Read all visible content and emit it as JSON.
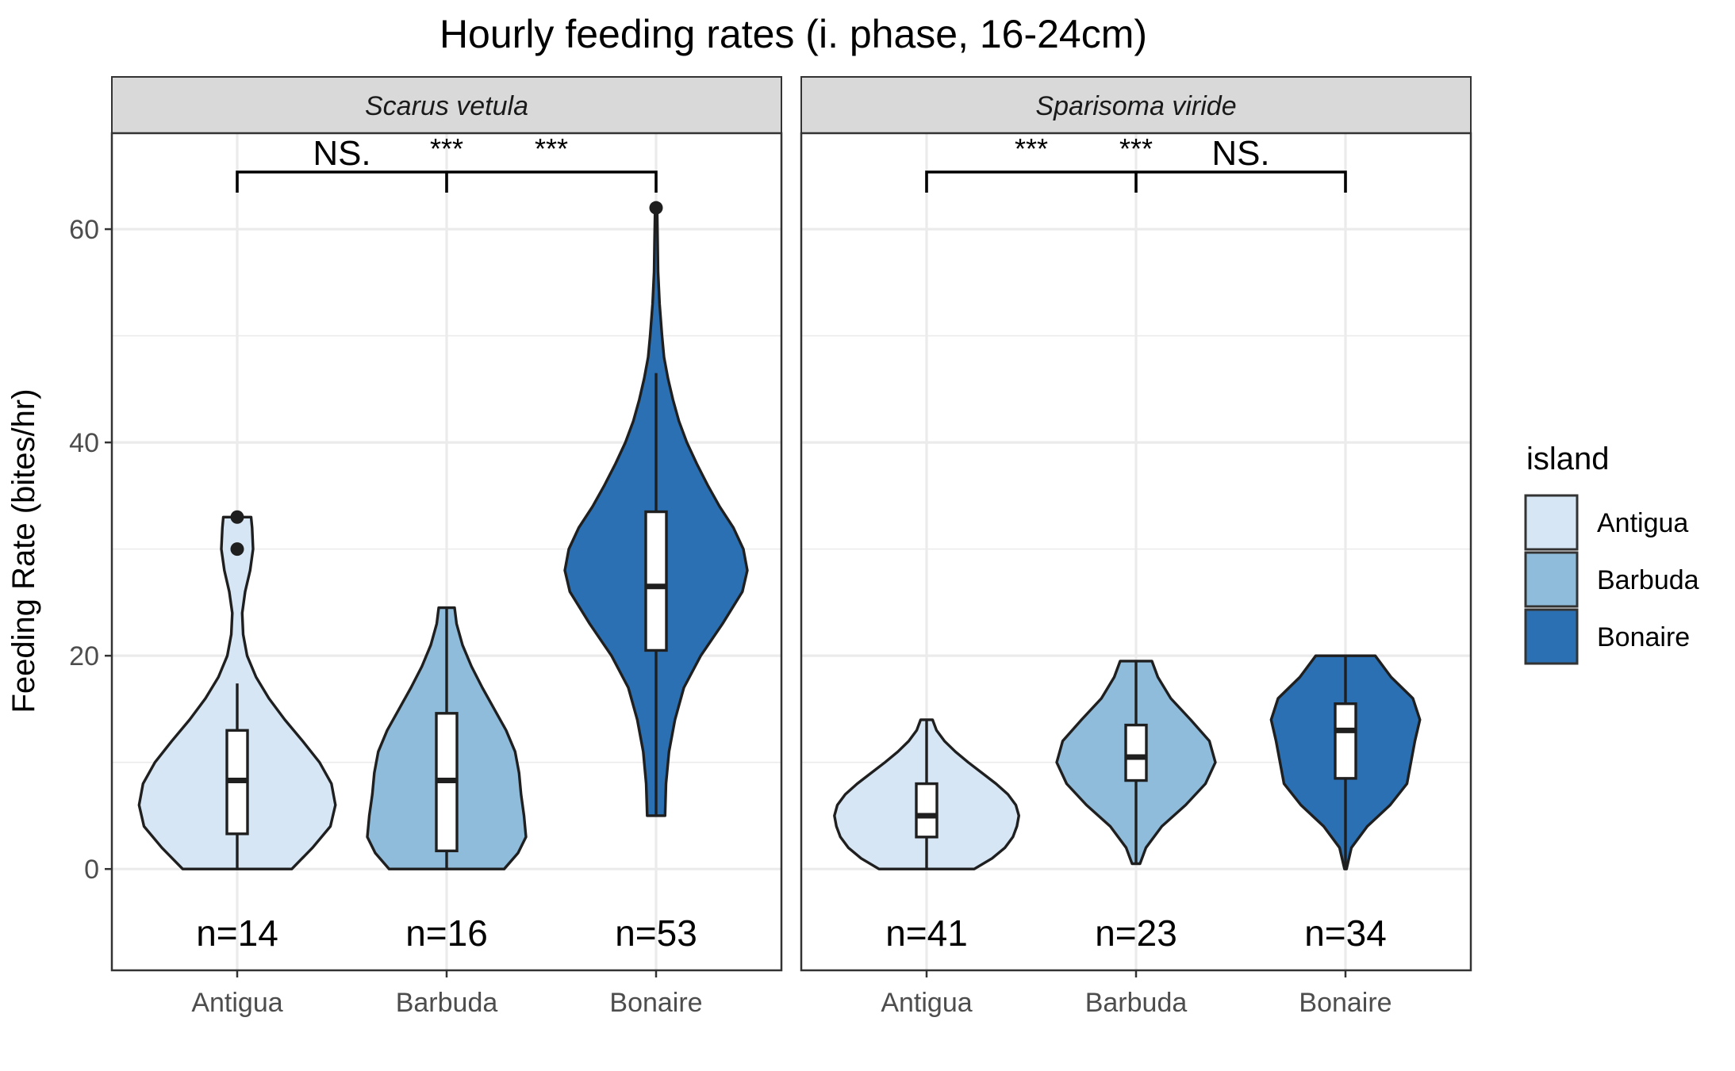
{
  "chart_data": {
    "type": "violin",
    "title": "Hourly feeding rates (i. phase, 16-24cm)",
    "ylabel": "Feeding Rate (bites/hr)",
    "xlabel": "",
    "ylim": [
      -9.5,
      69
    ],
    "yticks": [
      0,
      20,
      40,
      60
    ],
    "grid": true,
    "legend": {
      "title": "island",
      "placement": "right",
      "entries": [
        {
          "name": "Antigua",
          "color": "#d6e6f5"
        },
        {
          "name": "Barbuda",
          "color": "#8fbcdb"
        },
        {
          "name": "Bonaire",
          "color": "#2b70b3"
        }
      ]
    },
    "categories": [
      "Antigua",
      "Barbuda",
      "Bonaire"
    ],
    "panels": [
      {
        "name": "Scarus vetula",
        "groups": [
          {
            "island": "Antigua",
            "n_label": "n=14",
            "min": 0,
            "q1": 3.3,
            "median": 8.3,
            "q3": 13,
            "max": 33,
            "whisker_low": 0,
            "whisker_high": 17.4,
            "outliers": [
              30,
              33
            ],
            "density": [
              [
                0,
                0.55
              ],
              [
                2,
                0.76
              ],
              [
                4,
                0.94
              ],
              [
                6,
                0.99
              ],
              [
                8,
                0.95
              ],
              [
                10,
                0.83
              ],
              [
                12,
                0.66
              ],
              [
                14,
                0.48
              ],
              [
                16,
                0.32
              ],
              [
                18,
                0.19
              ],
              [
                20,
                0.1
              ],
              [
                22,
                0.06
              ],
              [
                24,
                0.05
              ],
              [
                26,
                0.08
              ],
              [
                28,
                0.13
              ],
              [
                30,
                0.16
              ],
              [
                32,
                0.15
              ],
              [
                33,
                0.14
              ]
            ]
          },
          {
            "island": "Barbuda",
            "n_label": "n=16",
            "min": 0,
            "q1": 1.7,
            "median": 8.3,
            "q3": 14.6,
            "max": 24.5,
            "whisker_low": 0,
            "whisker_high": 24.5,
            "outliers": [],
            "density": [
              [
                0,
                0.58
              ],
              [
                1.5,
                0.72
              ],
              [
                3,
                0.8
              ],
              [
                5,
                0.78
              ],
              [
                7,
                0.75
              ],
              [
                9,
                0.73
              ],
              [
                11,
                0.69
              ],
              [
                13,
                0.6
              ],
              [
                15,
                0.48
              ],
              [
                17,
                0.36
              ],
              [
                19,
                0.25
              ],
              [
                21,
                0.16
              ],
              [
                23,
                0.1
              ],
              [
                24.5,
                0.08
              ]
            ]
          },
          {
            "island": "Bonaire",
            "n_label": "n=53",
            "min": 5,
            "q1": 20.5,
            "median": 26.5,
            "q3": 33.5,
            "max": 62,
            "whisker_low": 5,
            "whisker_high": 46.5,
            "outliers": [
              62
            ],
            "density": [
              [
                5,
                0.09
              ],
              [
                8,
                0.1
              ],
              [
                11,
                0.13
              ],
              [
                14,
                0.19
              ],
              [
                17,
                0.28
              ],
              [
                20,
                0.45
              ],
              [
                23,
                0.67
              ],
              [
                26,
                0.87
              ],
              [
                28,
                0.92
              ],
              [
                30,
                0.88
              ],
              [
                32,
                0.78
              ],
              [
                34,
                0.64
              ],
              [
                36,
                0.52
              ],
              [
                38,
                0.41
              ],
              [
                40,
                0.31
              ],
              [
                42,
                0.23
              ],
              [
                44,
                0.17
              ],
              [
                46,
                0.12
              ],
              [
                48,
                0.08
              ],
              [
                50,
                0.06
              ],
              [
                53,
                0.035
              ],
              [
                56,
                0.02
              ],
              [
                59,
                0.015
              ],
              [
                62,
                0.01
              ]
            ]
          }
        ],
        "significance": [
          "NS.",
          "***",
          "***"
        ]
      },
      {
        "name": "Sparisoma viride",
        "groups": [
          {
            "island": "Antigua",
            "n_label": "n=41",
            "min": 0,
            "q1": 3,
            "median": 5,
            "q3": 8,
            "max": 14,
            "whisker_low": 0,
            "whisker_high": 14,
            "outliers": [],
            "density": [
              [
                0,
                0.48
              ],
              [
                1,
                0.66
              ],
              [
                2,
                0.79
              ],
              [
                3,
                0.87
              ],
              [
                4,
                0.91
              ],
              [
                5,
                0.93
              ],
              [
                6,
                0.9
              ],
              [
                7,
                0.82
              ],
              [
                8,
                0.7
              ],
              [
                9,
                0.56
              ],
              [
                10,
                0.42
              ],
              [
                11,
                0.29
              ],
              [
                12,
                0.18
              ],
              [
                13,
                0.1
              ],
              [
                14,
                0.06
              ]
            ]
          },
          {
            "island": "Barbuda",
            "n_label": "n=23",
            "min": 0.5,
            "q1": 8.3,
            "median": 10.5,
            "q3": 13.5,
            "max": 19.5,
            "whisker_low": 0.5,
            "whisker_high": 19.5,
            "outliers": [],
            "density": [
              [
                0.5,
                0.04
              ],
              [
                2,
                0.1
              ],
              [
                4,
                0.26
              ],
              [
                6,
                0.5
              ],
              [
                8,
                0.7
              ],
              [
                10,
                0.8
              ],
              [
                12,
                0.74
              ],
              [
                14,
                0.55
              ],
              [
                16,
                0.35
              ],
              [
                18,
                0.22
              ],
              [
                19.5,
                0.16
              ]
            ]
          },
          {
            "island": "Bonaire",
            "n_label": "n=34",
            "min": 0,
            "q1": 8.5,
            "median": 13,
            "q3": 15.5,
            "max": 20,
            "whisker_low": 0,
            "whisker_high": 20,
            "outliers": [],
            "density": [
              [
                0,
                0.01
              ],
              [
                2,
                0.06
              ],
              [
                4,
                0.22
              ],
              [
                6,
                0.45
              ],
              [
                8,
                0.62
              ],
              [
                10,
                0.66
              ],
              [
                12,
                0.7
              ],
              [
                14,
                0.75
              ],
              [
                16,
                0.68
              ],
              [
                18,
                0.46
              ],
              [
                20,
                0.3
              ]
            ]
          }
        ],
        "significance": [
          "***",
          "***",
          "NS."
        ]
      }
    ]
  }
}
